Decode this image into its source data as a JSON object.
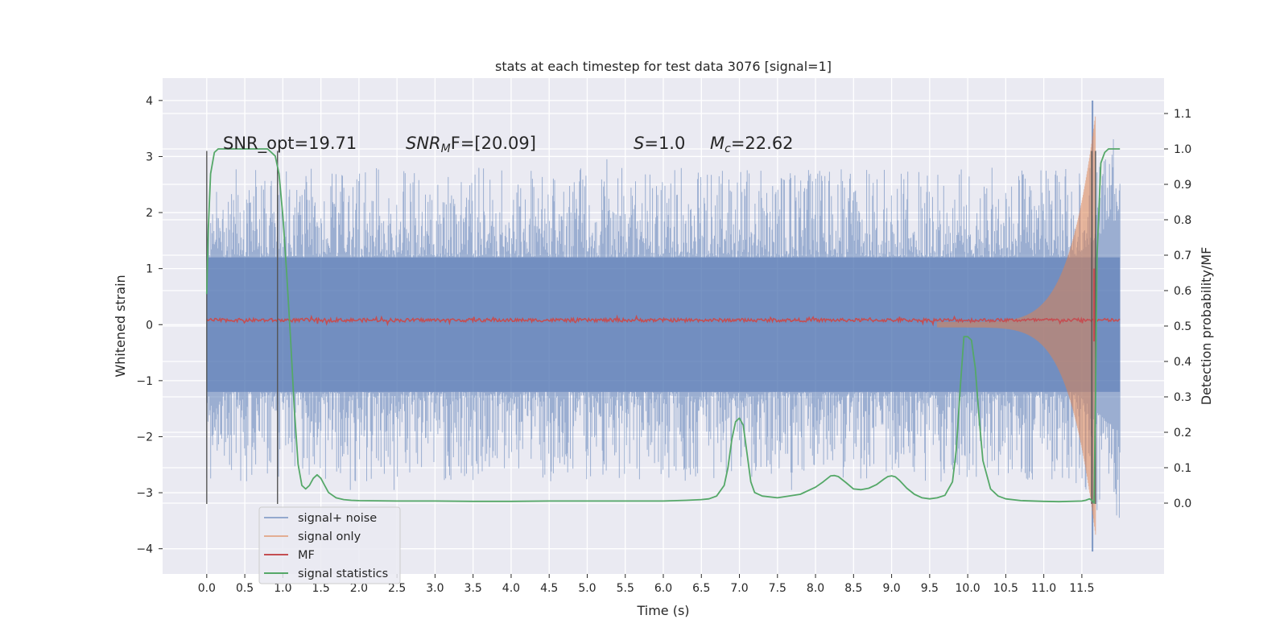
{
  "chart_data": {
    "type": "line",
    "title": "stats at each timestep for test data 3076 [signal=1]",
    "xlabel": "Time (s)",
    "ylabel": "Whitened strain",
    "ylabel_right": "Detection probability/MF",
    "xlim": [
      -0.58,
      12.58
    ],
    "ylim": [
      -4.45,
      4.4
    ],
    "ylim_right": [
      -0.2,
      1.2
    ],
    "x_ticks": [
      "0.0",
      "0.5",
      "1.0",
      "1.5",
      "2.0",
      "2.5",
      "3.0",
      "3.5",
      "4.0",
      "4.5",
      "5.0",
      "5.5",
      "6.0",
      "6.5",
      "7.0",
      "7.5",
      "8.0",
      "8.5",
      "9.0",
      "9.5",
      "10.0",
      "10.5",
      "11.0",
      "11.5"
    ],
    "y_ticks": [
      "4",
      "3",
      "2",
      "1",
      "0",
      "−1",
      "−2",
      "−3",
      "−4"
    ],
    "y_ticks_right": [
      "1.1",
      "1.0",
      "0.9",
      "0.8",
      "0.7",
      "0.6",
      "0.5",
      "0.4",
      "0.3",
      "0.2",
      "0.1",
      "0.0"
    ],
    "grid": true,
    "legend_position": "lower-left",
    "annotations": {
      "snr_opt": "SNR_opt=19.71",
      "snr_mf_prefix": "SNR",
      "snr_mf_sub": "M",
      "snr_mf_suffix": "F=[20.09]",
      "s_prefix": "S",
      "s_suffix": "=1.0",
      "mc_prefix": "M",
      "mc_sub": "c",
      "mc_suffix": "=22.62"
    },
    "vertical_markers": [
      {
        "x": 0.0,
        "y_range": [
          -3.2,
          3.1
        ]
      },
      {
        "x": 0.93,
        "y_range": [
          -3.2,
          3.1
        ]
      },
      {
        "x": 11.63,
        "y_range": [
          -3.2,
          3.1
        ]
      },
      {
        "x": 11.68,
        "y_range": [
          -3.2,
          3.1
        ]
      }
    ],
    "series": [
      {
        "name": "signal+ noise",
        "axis": "left",
        "color": "#4c72b0",
        "envelope": {
          "x_start": 0.0,
          "x_end": 12.0,
          "band_half_width": 1.2,
          "typical_peak": 2.5,
          "max_peak": 2.95,
          "burst_end_peak": 4.0
        }
      },
      {
        "name": "signal only",
        "axis": "left",
        "color": "#dd8452",
        "chirp": {
          "x_start": 9.6,
          "x_end": 11.68,
          "amplitude_start": 0.05,
          "amplitude_end": 3.75
        }
      },
      {
        "name": "MF",
        "axis": "left",
        "color": "#c44e52",
        "baseline": {
          "x_start": 0.0,
          "x_end": 12.0,
          "level": 0.08,
          "noise": 0.06
        },
        "spike": {
          "x": 11.66,
          "min": -0.3,
          "max": 1.0
        }
      },
      {
        "name": "signal statistics",
        "axis": "right",
        "color": "#55a868",
        "x": [
          0.0,
          0.02,
          0.05,
          0.1,
          0.15,
          0.2,
          0.3,
          0.5,
          0.7,
          0.8,
          0.85,
          0.9,
          0.95,
          1.0,
          1.05,
          1.1,
          1.15,
          1.2,
          1.25,
          1.3,
          1.35,
          1.4,
          1.45,
          1.5,
          1.55,
          1.6,
          1.7,
          1.8,
          1.9,
          2.0,
          2.5,
          3.0,
          3.5,
          4.0,
          4.5,
          5.0,
          5.5,
          6.0,
          6.3,
          6.5,
          6.6,
          6.7,
          6.8,
          6.85,
          6.9,
          6.95,
          7.0,
          7.05,
          7.1,
          7.15,
          7.2,
          7.3,
          7.5,
          7.8,
          8.0,
          8.1,
          8.2,
          8.25,
          8.3,
          8.4,
          8.5,
          8.6,
          8.7,
          8.8,
          8.9,
          8.95,
          9.0,
          9.05,
          9.1,
          9.2,
          9.3,
          9.4,
          9.5,
          9.6,
          9.7,
          9.8,
          9.85,
          9.9,
          9.95,
          10.0,
          10.05,
          10.1,
          10.15,
          10.2,
          10.3,
          10.4,
          10.5,
          10.7,
          11.0,
          11.2,
          11.5,
          11.55,
          11.6,
          11.63,
          11.66,
          11.68,
          11.7,
          11.75,
          11.8,
          11.85,
          11.9,
          11.95,
          12.0
        ],
        "values": [
          0.59,
          0.77,
          0.93,
          0.99,
          1.0,
          1.0,
          1.0,
          1.0,
          1.0,
          1.0,
          0.99,
          0.98,
          0.93,
          0.81,
          0.65,
          0.47,
          0.27,
          0.11,
          0.05,
          0.04,
          0.05,
          0.07,
          0.08,
          0.07,
          0.05,
          0.03,
          0.015,
          0.01,
          0.008,
          0.007,
          0.006,
          0.006,
          0.005,
          0.005,
          0.006,
          0.006,
          0.006,
          0.006,
          0.008,
          0.01,
          0.012,
          0.02,
          0.05,
          0.1,
          0.18,
          0.23,
          0.24,
          0.22,
          0.14,
          0.06,
          0.03,
          0.02,
          0.015,
          0.025,
          0.045,
          0.06,
          0.077,
          0.078,
          0.075,
          0.058,
          0.04,
          0.038,
          0.042,
          0.052,
          0.068,
          0.075,
          0.077,
          0.074,
          0.065,
          0.042,
          0.025,
          0.015,
          0.012,
          0.015,
          0.022,
          0.06,
          0.15,
          0.32,
          0.47,
          0.47,
          0.46,
          0.38,
          0.24,
          0.12,
          0.04,
          0.02,
          0.012,
          0.007,
          0.005,
          0.004,
          0.006,
          0.008,
          0.012,
          0.008,
          0.0,
          0.3,
          0.7,
          0.96,
          0.99,
          1.0,
          1.0,
          1.0,
          1.0
        ]
      }
    ]
  }
}
